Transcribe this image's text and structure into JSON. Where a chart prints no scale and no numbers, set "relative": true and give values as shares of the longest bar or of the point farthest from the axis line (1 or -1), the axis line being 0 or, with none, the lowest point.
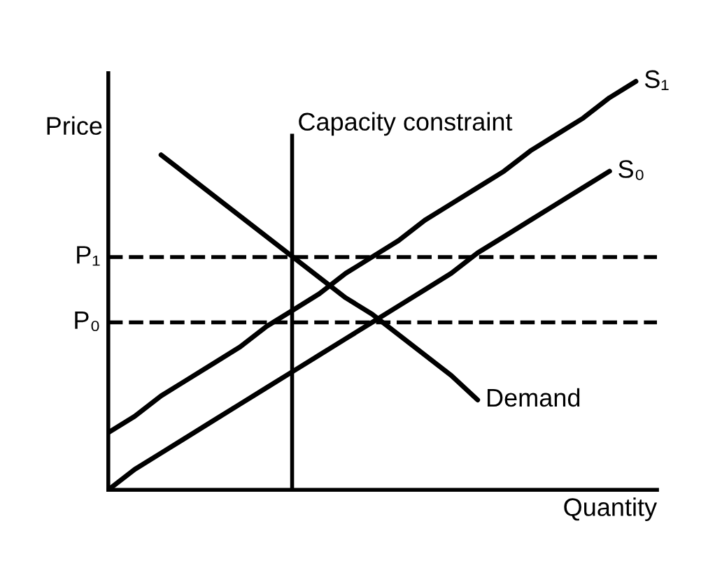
{
  "chart_data": {
    "type": "line",
    "relative": true,
    "tick_labels": false,
    "grid": false,
    "xlabel": "Quantity",
    "ylabel": "Price",
    "categories": [
      null,
      null,
      null,
      null,
      null,
      null,
      null,
      null,
      null,
      null,
      null,
      null,
      null,
      null,
      null,
      null,
      null,
      null,
      null,
      null,
      null
    ],
    "series": [
      {
        "name": "S₁",
        "color": "#000000",
        "values": [
          0.14,
          0.18,
          0.23,
          0.27,
          0.31,
          0.35,
          0.4,
          0.44,
          0.48,
          0.53,
          0.57,
          0.61,
          0.66,
          0.7,
          0.74,
          0.78,
          0.83,
          0.87,
          0.91,
          0.96,
          1.0
        ]
      },
      {
        "name": "S₀",
        "color": "#000000",
        "values": [
          0,
          0.05,
          0.09,
          0.13,
          0.17,
          0.21,
          0.25,
          0.29,
          0.33,
          0.37,
          0.41,
          0.45,
          0.49,
          0.53,
          0.58,
          0.62,
          0.66,
          0.7,
          0.74,
          0.78,
          null
        ]
      },
      {
        "name": "Demand",
        "color": "#000000",
        "values": [
          null,
          null,
          0.82,
          0.77,
          0.72,
          0.67,
          0.62,
          0.57,
          0.52,
          0.47,
          0.43,
          0.38,
          0.33,
          0.28,
          0.22,
          null,
          null,
          null,
          null,
          null,
          null
        ]
      }
    ],
    "ref_lines": [
      {
        "axis": "y",
        "value": 0.57,
        "label": "P₁",
        "color": "#000000",
        "line_style": "dashed"
      },
      {
        "axis": "y",
        "value": 0.41,
        "label": "P₀",
        "color": "#000000",
        "line_style": "dashed"
      }
    ],
    "annotations": [
      "Capacity constraint"
    ]
  }
}
